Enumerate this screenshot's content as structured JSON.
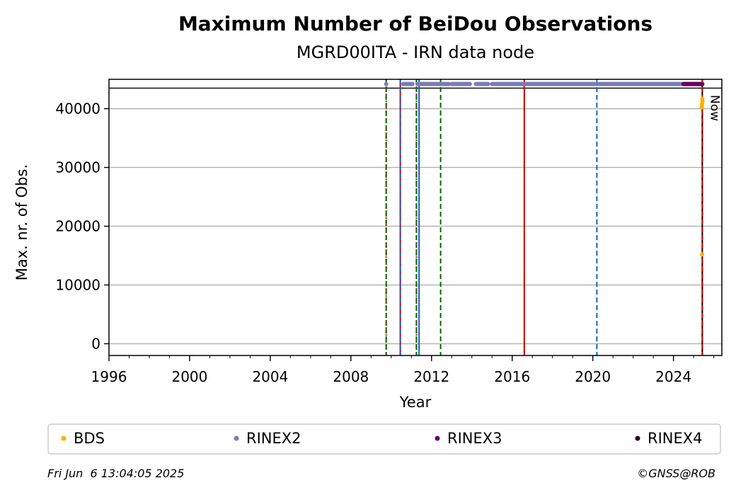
{
  "chart_data": {
    "type": "scatter",
    "title": "Maximum Number of BeiDou Observations",
    "subtitle": "MGRD00ITA - IRN data node",
    "xlabel": "Year",
    "ylabel": "Max. nr. of Obs.",
    "xlim": [
      1996,
      2026.4
    ],
    "ylim": [
      -2000,
      45000
    ],
    "grid": "horizontal",
    "x_ticks": [
      1996,
      2000,
      2004,
      2008,
      2012,
      2016,
      2020,
      2024
    ],
    "x_tick_labels": [
      "1996",
      "2000",
      "2004",
      "2008",
      "2012",
      "2016",
      "2020",
      "2024"
    ],
    "y_ticks": [
      0,
      10000,
      20000,
      30000,
      40000
    ],
    "y_tick_labels": [
      "0",
      "10000",
      "20000",
      "30000",
      "40000"
    ],
    "top_band_y": 43500,
    "now_label": "Now",
    "now_x": 2025.43,
    "vertical_lines": [
      {
        "x": 2009.75,
        "color": "#cc0000",
        "style": "dotted"
      },
      {
        "x": 2009.75,
        "color": "#006600",
        "style": "dashed"
      },
      {
        "x": 2010.45,
        "color": "#cc0000",
        "style": "solid"
      },
      {
        "x": 2010.45,
        "color": "#1060c0",
        "style": "dashed"
      },
      {
        "x": 2011.25,
        "color": "#cc0000",
        "style": "dotted"
      },
      {
        "x": 2011.25,
        "color": "#006600",
        "style": "dashed"
      },
      {
        "x": 2011.38,
        "color": "#1060c0",
        "style": "solid"
      },
      {
        "x": 2012.45,
        "color": "#006600",
        "style": "dashed"
      },
      {
        "x": 2016.6,
        "color": "#cc0000",
        "style": "solid"
      },
      {
        "x": 2020.2,
        "color": "#1060c0",
        "style": "dashed"
      },
      {
        "x": 2025.43,
        "color": "#000000",
        "style": "solid"
      },
      {
        "x": 2025.43,
        "color": "#cc0000",
        "style": "dashed"
      }
    ],
    "series": [
      {
        "name": "BDS",
        "color": "#ffb000",
        "x": [
          2025.4,
          2025.42,
          2025.44,
          2025.43,
          2025.41,
          2025.42
        ],
        "y": [
          40200,
          40800,
          41300,
          41700,
          40500,
          15200
        ]
      },
      {
        "name": "RINEX2",
        "color": "#7b7bb8",
        "segments": [
          [
            2009.75,
            2009.75
          ],
          [
            2010.6,
            2011.05
          ],
          [
            2011.3,
            2012.85
          ],
          [
            2013.0,
            2013.9
          ],
          [
            2014.2,
            2014.8
          ],
          [
            2015.0,
            2025.43
          ]
        ],
        "y": 44200
      },
      {
        "name": "RINEX3",
        "color": "#6a0060",
        "segments": [
          [
            2024.5,
            2025.43
          ]
        ],
        "y": 44200
      },
      {
        "name": "RINEX4",
        "color": "#2a0020",
        "segments": [],
        "y": 44200
      }
    ]
  },
  "legend": {
    "placement": "bottom",
    "items": [
      {
        "label": "BDS",
        "color": "#ffb000"
      },
      {
        "label": "RINEX2",
        "color": "#7b7bb8"
      },
      {
        "label": "RINEX3",
        "color": "#6a0060"
      },
      {
        "label": "RINEX4",
        "color": "#2a0020"
      }
    ]
  },
  "footer": {
    "timestamp": "Fri Jun  6 13:04:05 2025",
    "copyright": "©GNSS@ROB"
  }
}
